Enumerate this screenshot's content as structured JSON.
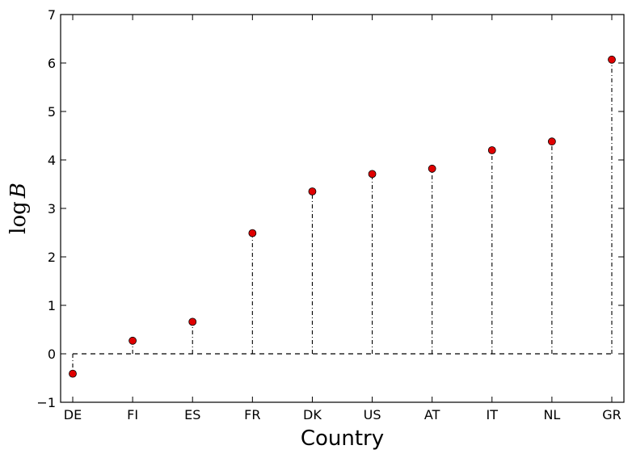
{
  "chart_data": {
    "type": "stem",
    "xlabel": "Country",
    "ylabel_text": "log",
    "ylabel_var": "B",
    "categories": [
      "DE",
      "FI",
      "ES",
      "FR",
      "DK",
      "US",
      "AT",
      "IT",
      "NL",
      "GR"
    ],
    "values": [
      -0.41,
      0.27,
      0.66,
      2.49,
      3.35,
      3.71,
      3.82,
      4.2,
      4.38,
      6.07
    ],
    "baseline": 0,
    "ylim": [
      -1,
      7
    ],
    "yticks": [
      -1,
      0,
      1,
      2,
      3,
      4,
      5,
      6,
      7
    ],
    "ytick_labels": [
      "−1",
      "0",
      "1",
      "2",
      "3",
      "4",
      "5",
      "6",
      "7"
    ],
    "marker_color": "#e00000",
    "grid": false
  }
}
